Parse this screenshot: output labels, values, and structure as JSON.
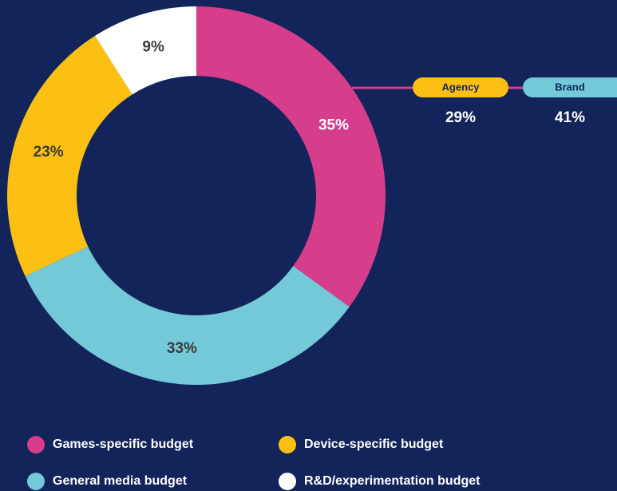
{
  "chart_data": {
    "type": "donut",
    "categories": [
      "Games-specific budget",
      "General media budget",
      "Device-specific budget",
      "R&D/experimentation budget"
    ],
    "values": [
      35,
      33,
      23,
      9
    ],
    "value_labels": [
      "35%",
      "33%",
      "23%",
      "9%"
    ],
    "colors": [
      "#d63d8b",
      "#74c9d9",
      "#fcc015",
      "#ffffff"
    ],
    "breakdown": {
      "categories": [
        "Agency",
        "Brand"
      ],
      "values": [
        29,
        41
      ],
      "value_labels": [
        "29%",
        "41%"
      ],
      "colors": [
        "#fcc015",
        "#74c9d9"
      ],
      "line_color": "#d63d8b"
    }
  }
}
